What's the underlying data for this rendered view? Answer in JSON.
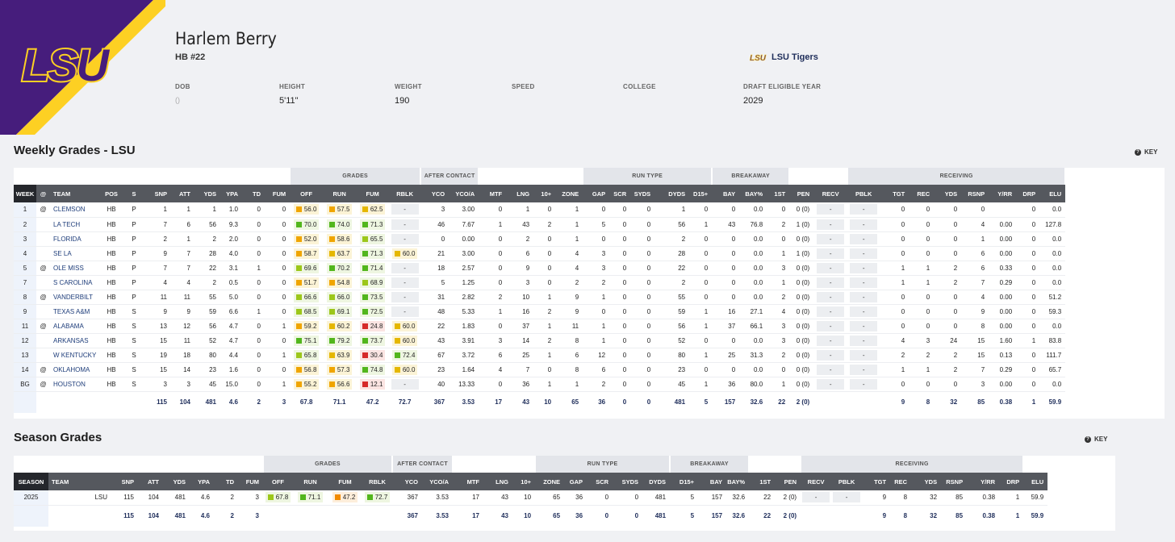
{
  "colors": {
    "lsu_purple": "#461d7c",
    "lsu_gold": "#fdd023",
    "green": "#52b61d",
    "lightgreen": "#9cc71a",
    "yellow": "#e5b700",
    "orange": "#f28a00",
    "red": "#d62929",
    "header_bg": "#55585e"
  },
  "player": {
    "name": "Harlem Berry",
    "position": "HB #22",
    "team_name": "LSU Tigers",
    "logo_text": "LSU"
  },
  "info": [
    {
      "label": "DOB",
      "value": "()"
    },
    {
      "label": "HEIGHT",
      "value": "5'11\""
    },
    {
      "label": "WEIGHT",
      "value": "190"
    },
    {
      "label": "SPEED",
      "value": ""
    },
    {
      "label": "COLLEGE",
      "value": ""
    },
    {
      "label": "DRAFT ELIGIBLE YEAR",
      "value": "2029"
    }
  ],
  "weekly": {
    "title": "Weekly Grades - LSU",
    "key_label": "KEY",
    "groups": [
      "GRADES",
      "AFTER CONTACT",
      "RUN TYPE",
      "BREAKAWAY",
      "RECEIVING"
    ],
    "columns": [
      "WEEK",
      "@",
      "TEAM",
      "POS",
      "S",
      "SNP",
      "ATT",
      "YDS",
      "YPA",
      "TD",
      "FUM",
      "OFF",
      "RUN",
      "FUM",
      "RBLK",
      "YCO",
      "YCO/A",
      "MTF",
      "LNG",
      "10+",
      "ZONE",
      "GAP",
      "SCR",
      "SYDS",
      "DYDS",
      "D15+",
      "BAY",
      "BAY%",
      "1ST",
      "PEN",
      "RECV",
      "PBLK",
      "TGT",
      "REC",
      "YDS",
      "RSNP",
      "Y/RR",
      "DRP",
      "ELU"
    ],
    "rows": [
      [
        "1",
        "@",
        "CLEMSON",
        "HB",
        "P",
        "1",
        "1",
        "1",
        "1.0",
        "0",
        "0",
        "56.0",
        "57.5",
        "62.5",
        "-",
        "3",
        "3.00",
        "0",
        "1",
        "0",
        "1",
        "0",
        "0",
        "0",
        "1",
        "0",
        "0",
        "0.0",
        "0",
        "0 (0)",
        "-",
        "-",
        "0",
        "0",
        "0",
        "0",
        "",
        "0",
        "0.0"
      ],
      [
        "2",
        "",
        "LA TECH",
        "HB",
        "P",
        "7",
        "6",
        "56",
        "9.3",
        "0",
        "0",
        "70.0",
        "74.0",
        "71.3",
        "-",
        "46",
        "7.67",
        "1",
        "43",
        "2",
        "1",
        "5",
        "0",
        "0",
        "56",
        "1",
        "43",
        "76.8",
        "2",
        "1 (0)",
        "-",
        "-",
        "0",
        "0",
        "0",
        "4",
        "0.00",
        "0",
        "127.8"
      ],
      [
        "3",
        "",
        "FLORIDA",
        "HB",
        "P",
        "2",
        "1",
        "2",
        "2.0",
        "0",
        "0",
        "52.0",
        "58.6",
        "65.5",
        "-",
        "0",
        "0.00",
        "0",
        "2",
        "0",
        "1",
        "0",
        "0",
        "0",
        "2",
        "0",
        "0",
        "0.0",
        "0",
        "0 (0)",
        "-",
        "-",
        "0",
        "0",
        "0",
        "1",
        "0.00",
        "0",
        "0.0"
      ],
      [
        "4",
        "",
        "SE LA",
        "HB",
        "P",
        "9",
        "7",
        "28",
        "4.0",
        "0",
        "0",
        "58.7",
        "63.7",
        "71.3",
        "60.0",
        "21",
        "3.00",
        "0",
        "6",
        "0",
        "4",
        "3",
        "0",
        "0",
        "28",
        "0",
        "0",
        "0.0",
        "1",
        "1 (0)",
        "-",
        "-",
        "0",
        "0",
        "0",
        "6",
        "0.00",
        "0",
        "0.0"
      ],
      [
        "5",
        "@",
        "OLE MISS",
        "HB",
        "P",
        "7",
        "7",
        "22",
        "3.1",
        "1",
        "0",
        "69.6",
        "70.2",
        "71.4",
        "-",
        "18",
        "2.57",
        "0",
        "9",
        "0",
        "4",
        "3",
        "0",
        "0",
        "22",
        "0",
        "0",
        "0.0",
        "3",
        "0 (0)",
        "-",
        "-",
        "1",
        "1",
        "2",
        "6",
        "0.33",
        "0",
        "0.0"
      ],
      [
        "7",
        "",
        "S CAROLINA",
        "HB",
        "P",
        "4",
        "4",
        "2",
        "0.5",
        "0",
        "0",
        "51.7",
        "54.8",
        "68.9",
        "-",
        "5",
        "1.25",
        "0",
        "3",
        "0",
        "2",
        "2",
        "0",
        "0",
        "2",
        "0",
        "0",
        "0.0",
        "1",
        "0 (0)",
        "-",
        "-",
        "1",
        "1",
        "2",
        "7",
        "0.29",
        "0",
        "0.0"
      ],
      [
        "8",
        "@",
        "VANDERBILT",
        "HB",
        "P",
        "11",
        "11",
        "55",
        "5.0",
        "0",
        "0",
        "66.6",
        "66.0",
        "73.5",
        "-",
        "31",
        "2.82",
        "2",
        "10",
        "1",
        "9",
        "1",
        "0",
        "0",
        "55",
        "0",
        "0",
        "0.0",
        "2",
        "0 (0)",
        "-",
        "-",
        "0",
        "0",
        "0",
        "4",
        "0.00",
        "0",
        "51.2"
      ],
      [
        "9",
        "",
        "TEXAS A&M",
        "HB",
        "S",
        "9",
        "9",
        "59",
        "6.6",
        "1",
        "0",
        "68.5",
        "69.1",
        "72.5",
        "-",
        "48",
        "5.33",
        "1",
        "16",
        "2",
        "9",
        "0",
        "0",
        "0",
        "59",
        "1",
        "16",
        "27.1",
        "4",
        "0 (0)",
        "-",
        "-",
        "0",
        "0",
        "0",
        "9",
        "0.00",
        "0",
        "59.3"
      ],
      [
        "11",
        "@",
        "ALABAMA",
        "HB",
        "S",
        "13",
        "12",
        "56",
        "4.7",
        "0",
        "1",
        "59.2",
        "60.2",
        "24.8",
        "60.0",
        "22",
        "1.83",
        "0",
        "37",
        "1",
        "11",
        "1",
        "0",
        "0",
        "56",
        "1",
        "37",
        "66.1",
        "3",
        "0 (0)",
        "-",
        "-",
        "0",
        "0",
        "0",
        "8",
        "0.00",
        "0",
        "0.0"
      ],
      [
        "12",
        "",
        "ARKANSAS",
        "HB",
        "S",
        "15",
        "11",
        "52",
        "4.7",
        "0",
        "0",
        "75.1",
        "79.2",
        "73.7",
        "60.0",
        "43",
        "3.91",
        "3",
        "14",
        "2",
        "8",
        "1",
        "0",
        "0",
        "52",
        "0",
        "0",
        "0.0",
        "3",
        "0 (0)",
        "-",
        "-",
        "4",
        "3",
        "24",
        "15",
        "1.60",
        "1",
        "83.8"
      ],
      [
        "13",
        "",
        "W KENTUCKY",
        "HB",
        "S",
        "19",
        "18",
        "80",
        "4.4",
        "0",
        "1",
        "65.8",
        "63.9",
        "30.4",
        "72.4",
        "67",
        "3.72",
        "6",
        "25",
        "1",
        "6",
        "12",
        "0",
        "0",
        "80",
        "1",
        "25",
        "31.3",
        "2",
        "0 (0)",
        "-",
        "-",
        "2",
        "2",
        "2",
        "15",
        "0.13",
        "0",
        "111.7"
      ],
      [
        "14",
        "@",
        "OKLAHOMA",
        "HB",
        "S",
        "15",
        "14",
        "23",
        "1.6",
        "0",
        "0",
        "56.8",
        "57.3",
        "74.8",
        "60.0",
        "23",
        "1.64",
        "4",
        "7",
        "0",
        "8",
        "6",
        "0",
        "0",
        "23",
        "0",
        "0",
        "0.0",
        "0",
        "0 (0)",
        "-",
        "-",
        "1",
        "1",
        "2",
        "7",
        "0.29",
        "0",
        "65.7"
      ],
      [
        "BG",
        "@",
        "HOUSTON",
        "HB",
        "S",
        "3",
        "3",
        "45",
        "15.0",
        "0",
        "1",
        "55.2",
        "56.6",
        "12.1",
        "-",
        "40",
        "13.33",
        "0",
        "36",
        "1",
        "1",
        "2",
        "0",
        "0",
        "45",
        "1",
        "36",
        "80.0",
        "1",
        "0 (0)",
        "-",
        "-",
        "0",
        "0",
        "0",
        "3",
        "0.00",
        "0",
        "0.0"
      ]
    ],
    "total": [
      "",
      "",
      "",
      "",
      "",
      "115",
      "104",
      "481",
      "4.6",
      "2",
      "3",
      "67.8",
      "71.1",
      "47.2",
      "72.7",
      "367",
      "3.53",
      "17",
      "43",
      "10",
      "65",
      "36",
      "0",
      "0",
      "481",
      "5",
      "157",
      "32.6",
      "22",
      "2 (0)",
      "",
      "",
      "9",
      "8",
      "32",
      "85",
      "0.38",
      "1",
      "59.9"
    ]
  },
  "season": {
    "title": "Season Grades",
    "key_label": "KEY",
    "groups": [
      "GRADES",
      "AFTER CONTACT",
      "RUN TYPE",
      "BREAKAWAY",
      "RECEIVING"
    ],
    "columns": [
      "SEASON",
      "TEAM",
      "SNP",
      "ATT",
      "YDS",
      "YPA",
      "TD",
      "FUM",
      "OFF",
      "RUN",
      "FUM",
      "RBLK",
      "YCO",
      "YCO/A",
      "MTF",
      "LNG",
      "10+",
      "ZONE",
      "GAP",
      "SCR",
      "SYDS",
      "DYDS",
      "D15+",
      "BAY",
      "BAY%",
      "1ST",
      "PEN",
      "RECV",
      "PBLK",
      "TGT",
      "REC",
      "YDS",
      "RSNP",
      "Y/RR",
      "DRP",
      "ELU"
    ],
    "rows": [
      [
        "2025",
        "LSU",
        "115",
        "104",
        "481",
        "4.6",
        "2",
        "3",
        "67.8",
        "71.1",
        "47.2",
        "72.7",
        "367",
        "3.53",
        "17",
        "43",
        "10",
        "65",
        "36",
        "0",
        "0",
        "481",
        "5",
        "157",
        "32.6",
        "22",
        "2 (0)",
        "-",
        "-",
        "9",
        "8",
        "32",
        "85",
        "0.38",
        "1",
        "59.9"
      ]
    ],
    "total": [
      "",
      "",
      "115",
      "104",
      "481",
      "4.6",
      "2",
      "3",
      "",
      "",
      "",
      "",
      "367",
      "3.53",
      "17",
      "43",
      "10",
      "65",
      "36",
      "0",
      "0",
      "481",
      "5",
      "157",
      "32.6",
      "22",
      "2 (0)",
      "",
      "",
      "9",
      "8",
      "32",
      "85",
      "0.38",
      "1",
      "59.9"
    ]
  }
}
